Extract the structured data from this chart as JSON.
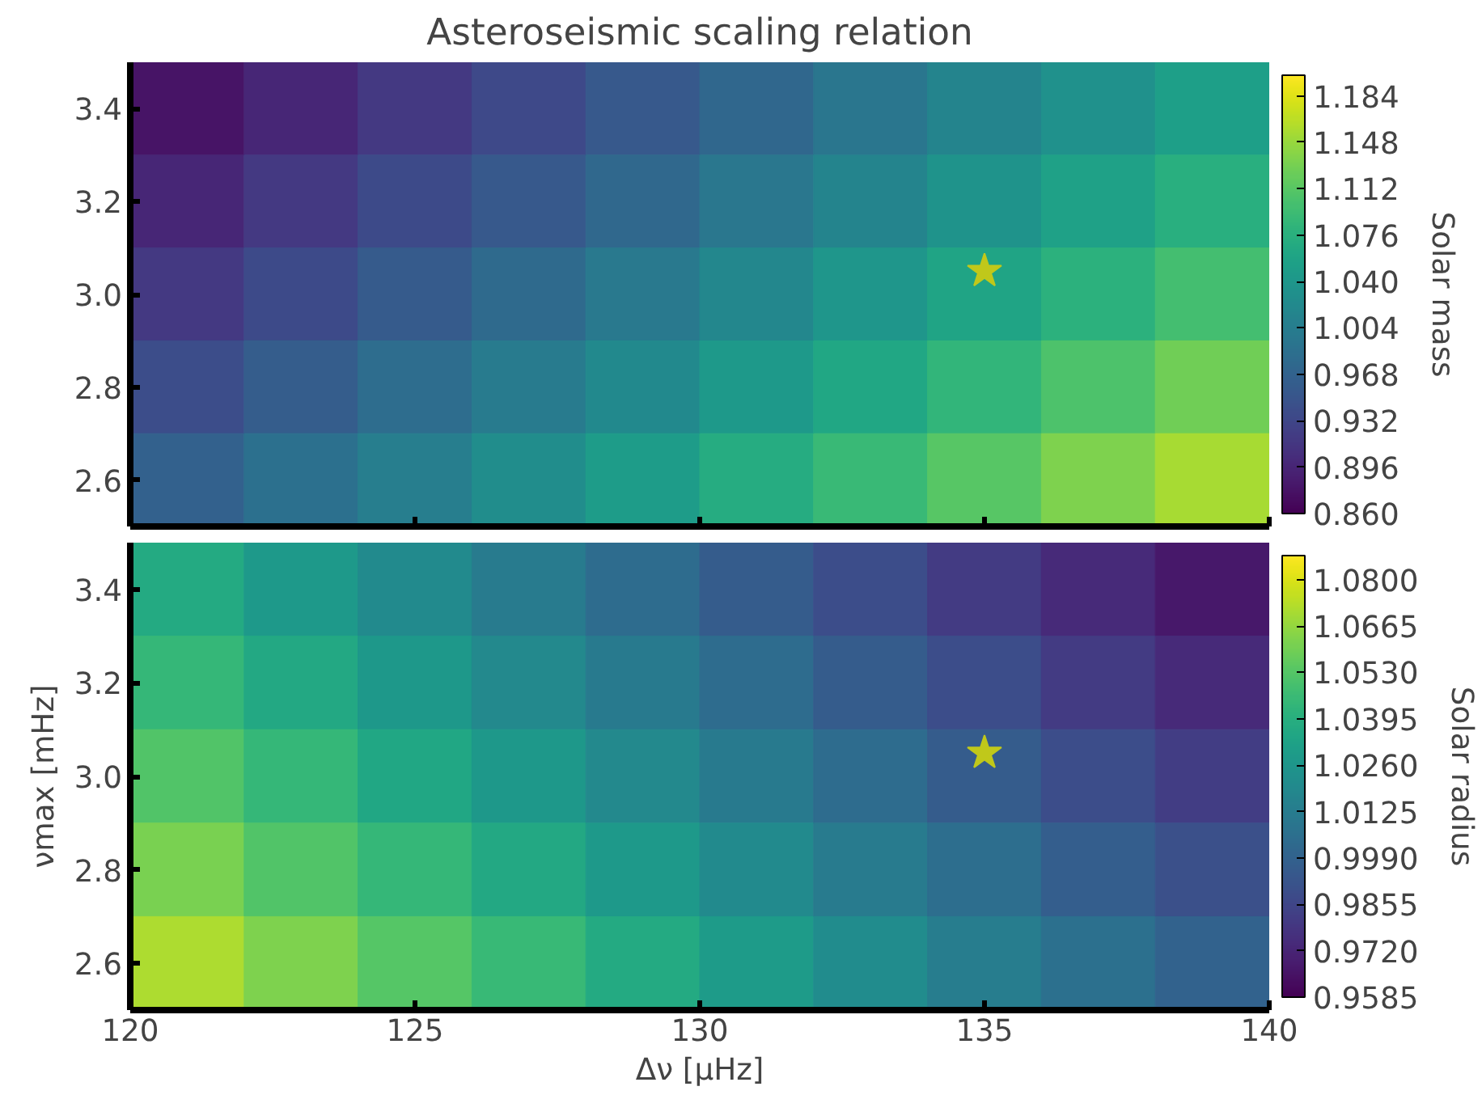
{
  "chart_data": [
    {
      "type": "heatmap",
      "title": "Asteroseismic scaling relation",
      "clabel": "Solar mass",
      "cells": [
        [
          0.878,
          0.897,
          0.916,
          0.935,
          0.955,
          0.974,
          0.993,
          1.013,
          1.032,
          1.052
        ],
        [
          0.897,
          0.916,
          0.936,
          0.955,
          0.975,
          0.995,
          1.014,
          1.034,
          1.054,
          1.074
        ],
        [
          0.917,
          0.937,
          0.957,
          0.977,
          0.997,
          1.017,
          1.038,
          1.058,
          1.078,
          1.099
        ],
        [
          0.94,
          0.96,
          0.981,
          1.001,
          1.022,
          1.042,
          1.063,
          1.084,
          1.105,
          1.126
        ],
        [
          0.965,
          0.985,
          1.006,
          1.027,
          1.048,
          1.07,
          1.091,
          1.112,
          1.134,
          1.155
        ]
      ],
      "clim": [
        0.86,
        1.2
      ],
      "cticks": [
        {
          "value": 0.86,
          "label": "0.860"
        },
        0.896,
        0.932,
        0.968,
        1.004,
        {
          "value": 1.04,
          "label": "1.040"
        },
        1.076,
        1.112,
        1.148,
        1.184
      ],
      "xlim": [
        120,
        140
      ],
      "ylim": [
        2.5,
        3.5
      ],
      "xticks": [
        120,
        125,
        130,
        135,
        140
      ],
      "yticks": [
        2.6,
        2.8,
        {
          "value": 3.0,
          "label": "3.0"
        },
        3.2,
        3.4
      ],
      "tick_labels": "y",
      "series": [
        {
          "type": "scatter",
          "x": [
            135
          ],
          "values": [
            3.05
          ],
          "color": "#c0c81a",
          "marker": "star"
        }
      ]
    },
    {
      "type": "heatmap",
      "xlabel": "Δν [μHz]",
      "ylabel": "νmax [mHz]",
      "clabel": "Solar radius",
      "cells": [
        [
          1.037,
          1.028,
          1.02,
          1.012,
          1.004,
          0.996,
          0.989,
          0.981,
          0.974,
          0.967
        ],
        [
          1.044,
          1.036,
          1.027,
          1.019,
          1.011,
          1.004,
          0.996,
          0.989,
          0.981,
          0.974
        ],
        [
          1.052,
          1.044,
          1.035,
          1.027,
          1.019,
          1.011,
          1.004,
          0.996,
          0.989,
          0.982
        ],
        [
          1.061,
          1.052,
          1.044,
          1.036,
          1.028,
          1.02,
          1.012,
          1.005,
          0.997,
          0.99
        ],
        [
          1.071,
          1.062,
          1.053,
          1.045,
          1.037,
          1.029,
          1.021,
          1.013,
          1.006,
          0.999
        ]
      ],
      "clim": [
        0.9585,
        1.087
      ],
      "cticks": [
        0.9585,
        {
          "value": 0.972,
          "label": "0.9720"
        },
        0.9855,
        {
          "value": 0.999,
          "label": "0.9990"
        },
        1.0125,
        {
          "value": 1.026,
          "label": "1.0260"
        },
        1.0395,
        {
          "value": 1.053,
          "label": "1.0530"
        },
        1.0665,
        {
          "value": 1.08,
          "label": "1.0800"
        }
      ],
      "xlim": [
        120,
        140
      ],
      "ylim": [
        2.5,
        3.5
      ],
      "xticks": [
        120,
        125,
        130,
        135,
        140
      ],
      "yticks": [
        2.6,
        2.8,
        {
          "value": 3.0,
          "label": "3.0"
        },
        3.2,
        3.4
      ],
      "series": [
        {
          "type": "scatter",
          "x": [
            135
          ],
          "values": [
            3.05
          ],
          "color": "#c0c81a",
          "marker": "star"
        }
      ]
    }
  ]
}
